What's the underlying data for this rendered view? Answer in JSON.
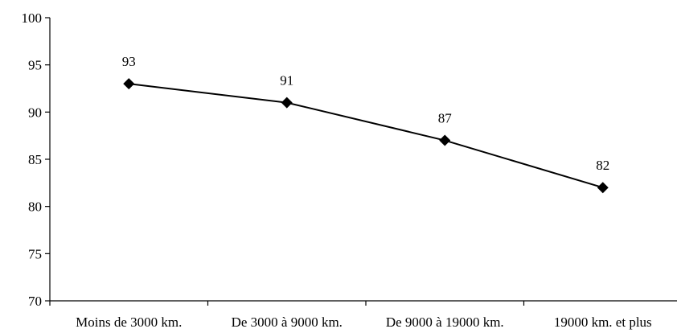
{
  "chart_data": {
    "type": "line",
    "title": "",
    "xlabel": "",
    "ylabel": "",
    "categories": [
      "Moins de 3000 km.",
      "De 3000 à 9000 km.",
      "De 9000 à 19000 km.",
      "19000 km. et plus"
    ],
    "series": [
      {
        "values": [
          93,
          91,
          87,
          82
        ]
      }
    ],
    "data_labels": [
      "93",
      "91",
      "87",
      "82"
    ],
    "ylim": [
      70,
      100
    ],
    "yticks": [
      70,
      75,
      80,
      85,
      90,
      95,
      100
    ],
    "ytick_labels": [
      "70",
      "75",
      "80",
      "85",
      "90",
      "95",
      "100"
    ],
    "grid": false,
    "legend": "none",
    "marker": "diamond",
    "line_color": "#000000",
    "marker_color": "#000000"
  }
}
